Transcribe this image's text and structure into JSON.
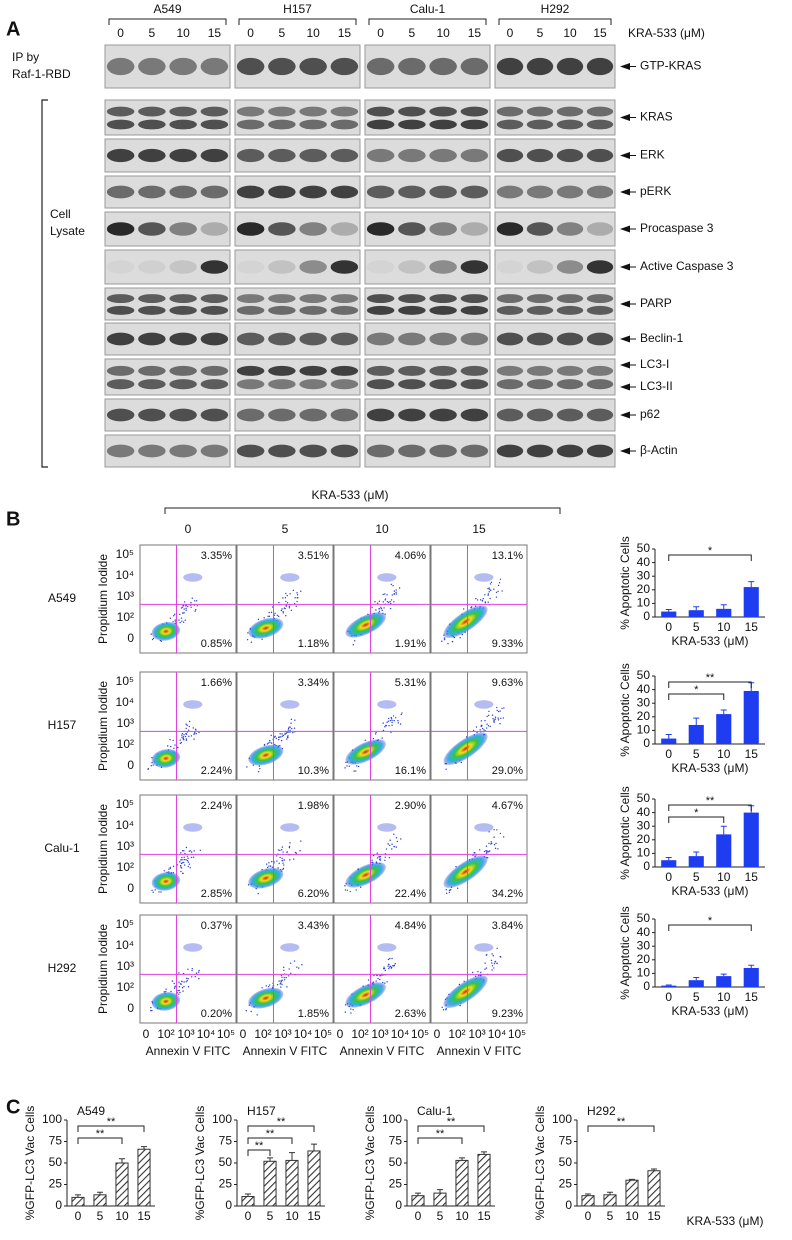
{
  "panel_a": {
    "label": "A",
    "cell_lines": [
      "A549",
      "H157",
      "Calu-1",
      "H292"
    ],
    "doses": [
      "0",
      "5",
      "10",
      "15"
    ],
    "dose_title": "KRA-533 (μM)",
    "ip_label": [
      "IP by",
      "Raf-1-RBD"
    ],
    "lysate_label": [
      "Cell",
      "Lysate"
    ],
    "rows": [
      [
        "GTP-KRAS"
      ],
      [
        "KRAS"
      ],
      [
        "ERK"
      ],
      [
        "pERK"
      ],
      [
        "Procaspase 3"
      ],
      [
        "Active Caspase 3"
      ],
      [
        "PARP"
      ],
      [
        "Beclin-1"
      ],
      [
        "LC3-I",
        "LC3-II"
      ],
      [
        "p62"
      ],
      [
        "β-Actin"
      ]
    ]
  },
  "panel_b": {
    "label": "B",
    "dose_title": "KRA-533 (μM)",
    "doses": [
      "0",
      "5",
      "10",
      "15"
    ],
    "cell_lines": [
      "A549",
      "H157",
      "Calu-1",
      "H292"
    ],
    "y_title": "Propidium Iodide",
    "x_title": "Annexin V FITC",
    "yticks": [
      "10⁵",
      "10⁴",
      "10³",
      "10²",
      "0"
    ],
    "xticks": [
      "0",
      "10²",
      "10³",
      "10⁴",
      "10⁵"
    ],
    "quadrants": [
      [
        [
          "3.35%",
          "0.85%"
        ],
        [
          "3.51%",
          "1.18%"
        ],
        [
          "4.06%",
          "1.91%"
        ],
        [
          "13.1%",
          "9.33%"
        ]
      ],
      [
        [
          "1.66%",
          "2.24%"
        ],
        [
          "3.34%",
          "10.3%"
        ],
        [
          "5.31%",
          "16.1%"
        ],
        [
          "9.63%",
          "29.0%"
        ]
      ],
      [
        [
          "2.24%",
          "2.85%"
        ],
        [
          "1.98%",
          "6.20%"
        ],
        [
          "2.90%",
          "22.4%"
        ],
        [
          "4.67%",
          "34.2%"
        ]
      ],
      [
        [
          "0.37%",
          "0.20%"
        ],
        [
          "3.43%",
          "1.85%"
        ],
        [
          "4.84%",
          "2.63%"
        ],
        [
          "3.84%",
          "9.23%"
        ]
      ]
    ]
  },
  "panel_c": {
    "label": "C",
    "x_title": "KRA-533 (μM)"
  },
  "chart_data": [
    {
      "type": "bar",
      "categories": [
        "0",
        "5",
        "10",
        "15"
      ],
      "series": [
        {
          "color": "#1f3df0",
          "values": [
            4,
            5,
            6,
            22
          ],
          "errors": [
            1.5,
            2.5,
            3,
            4
          ]
        }
      ],
      "ylim": [
        0,
        50
      ],
      "yticks": [
        0,
        10,
        20,
        30,
        40,
        50
      ],
      "y_title": "% Apoptotic Cells",
      "x_title": "KRA-533 (μM)",
      "brackets": [
        {
          "label": "*",
          "from": "0",
          "to": "15"
        }
      ]
    },
    {
      "type": "bar",
      "categories": [
        "0",
        "5",
        "10",
        "15"
      ],
      "series": [
        {
          "color": "#1f3df0",
          "values": [
            4,
            14,
            22,
            39
          ],
          "errors": [
            3,
            5,
            3,
            6
          ]
        }
      ],
      "ylim": [
        0,
        50
      ],
      "yticks": [
        0,
        10,
        20,
        30,
        40,
        50
      ],
      "y_title": "% Apoptotic Cells",
      "x_title": "KRA-533 (μM)",
      "brackets": [
        {
          "label": "**",
          "from": "0",
          "to": "15"
        },
        {
          "label": "*",
          "from": "0",
          "to": "10"
        }
      ]
    },
    {
      "type": "bar",
      "categories": [
        "0",
        "5",
        "10",
        "15"
      ],
      "series": [
        {
          "color": "#1f3df0",
          "values": [
            5,
            8,
            24,
            40
          ],
          "errors": [
            2,
            3,
            6,
            5
          ]
        }
      ],
      "ylim": [
        0,
        50
      ],
      "yticks": [
        0,
        10,
        20,
        30,
        40,
        50
      ],
      "y_title": "% Apoptotic Cells",
      "x_title": "KRA-533 (μM)",
      "brackets": [
        {
          "label": "**",
          "from": "0",
          "to": "15"
        },
        {
          "label": "*",
          "from": "0",
          "to": "10"
        }
      ]
    },
    {
      "type": "bar",
      "categories": [
        "0",
        "5",
        "10",
        "15"
      ],
      "series": [
        {
          "color": "#1f3df0",
          "values": [
            1,
            5,
            8,
            14
          ],
          "errors": [
            0.5,
            2,
            1.5,
            2
          ]
        }
      ],
      "ylim": [
        0,
        50
      ],
      "yticks": [
        0,
        10,
        20,
        30,
        40,
        50
      ],
      "y_title": "% Apoptotic Cells",
      "x_title": "KRA-533 (μM)",
      "brackets": [
        {
          "label": "*",
          "from": "0",
          "to": "15"
        }
      ]
    },
    {
      "type": "bar",
      "style": "hatched",
      "title": "A549",
      "categories": [
        "0",
        "5",
        "10",
        "15"
      ],
      "series": [
        {
          "color": "#333333",
          "values": [
            10,
            13,
            50,
            66
          ],
          "errors": [
            3,
            3,
            5,
            3
          ]
        }
      ],
      "ylim": [
        0,
        100
      ],
      "yticks": [
        0,
        25,
        50,
        75,
        100
      ],
      "y_title": "%GFP-LC3 Vac Cells",
      "brackets": [
        {
          "label": "**",
          "from": "0",
          "to": "15"
        },
        {
          "label": "**",
          "from": "0",
          "to": "10"
        }
      ]
    },
    {
      "type": "bar",
      "style": "hatched",
      "title": "H157",
      "categories": [
        "0",
        "5",
        "10",
        "15"
      ],
      "series": [
        {
          "color": "#333333",
          "values": [
            11,
            52,
            53,
            64
          ],
          "errors": [
            3,
            4,
            9,
            8
          ]
        }
      ],
      "ylim": [
        0,
        100
      ],
      "yticks": [
        0,
        25,
        50,
        75,
        100
      ],
      "y_title": "%GFP-LC3 Vac Cells",
      "brackets": [
        {
          "label": "**",
          "from": "0",
          "to": "15"
        },
        {
          "label": "**",
          "from": "0",
          "to": "10"
        },
        {
          "label": "**",
          "from": "0",
          "to": "5"
        }
      ]
    },
    {
      "type": "bar",
      "style": "hatched",
      "title": "Calu-1",
      "categories": [
        "0",
        "5",
        "10",
        "15"
      ],
      "series": [
        {
          "color": "#333333",
          "values": [
            12,
            15,
            53,
            60
          ],
          "errors": [
            3,
            4,
            3,
            3
          ]
        }
      ],
      "ylim": [
        0,
        100
      ],
      "yticks": [
        0,
        25,
        50,
        75,
        100
      ],
      "y_title": "%GFP-LC3 Vac Cells",
      "brackets": [
        {
          "label": "**",
          "from": "0",
          "to": "15"
        },
        {
          "label": "**",
          "from": "0",
          "to": "10"
        }
      ]
    },
    {
      "type": "bar",
      "style": "hatched",
      "title": "H292",
      "categories": [
        "0",
        "5",
        "10",
        "15"
      ],
      "series": [
        {
          "color": "#333333",
          "values": [
            12,
            13,
            30,
            41
          ],
          "errors": [
            2,
            3,
            1,
            2
          ]
        }
      ],
      "ylim": [
        0,
        100
      ],
      "yticks": [
        0,
        25,
        50,
        75,
        100
      ],
      "y_title": "%GFP-LC3 Vac Cells",
      "brackets": [
        {
          "label": "**",
          "from": "0",
          "to": "15"
        }
      ]
    }
  ]
}
